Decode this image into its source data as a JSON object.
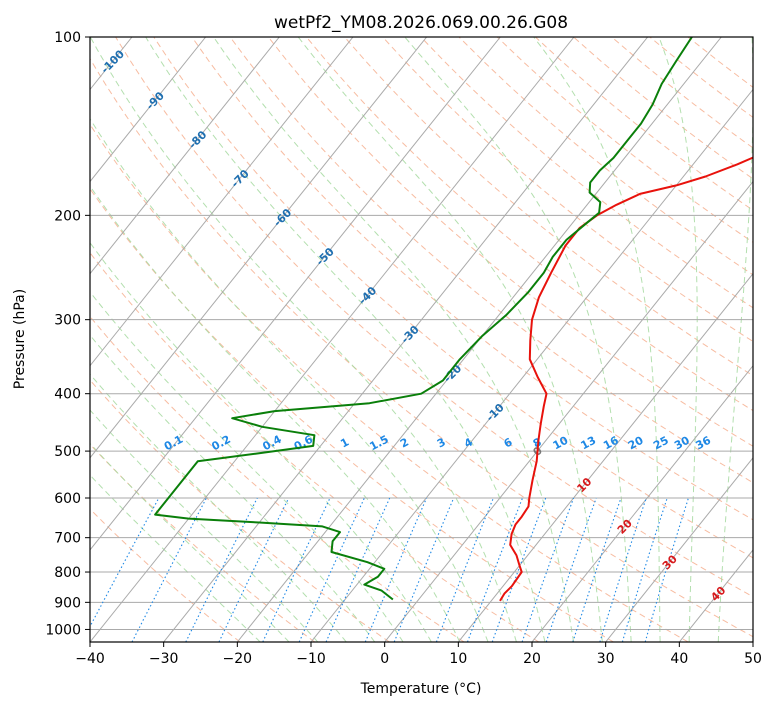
{
  "chart_data": {
    "type": "line",
    "title": "wetPf2_YM08.2026.069.00.26.G08",
    "xlabel": "Temperature (°C)",
    "ylabel": "Pressure (hPa)",
    "xlim": [
      -40,
      50
    ],
    "ylim": [
      1050,
      100
    ],
    "y_scale": "log",
    "grid": true,
    "x_ticks": [
      -40,
      -30,
      -20,
      -10,
      0,
      10,
      20,
      30,
      40,
      50
    ],
    "y_ticks": [
      100,
      200,
      300,
      400,
      500,
      600,
      700,
      800,
      900,
      1000
    ],
    "isotherm_labels": [
      -100,
      -90,
      -80,
      -70,
      -60,
      -50,
      -40,
      -30,
      -20,
      -10,
      0,
      10,
      20,
      30,
      40
    ],
    "mixing_ratio_labels": [
      "0.1",
      "0.2",
      "0.4",
      "0.6",
      "1",
      "1.5",
      "2",
      "3",
      "4",
      "6",
      "8",
      "10",
      "13",
      "16",
      "20",
      "25",
      "30",
      "36"
    ],
    "mixing_ratio_values": [
      0.1,
      0.2,
      0.4,
      0.6,
      1,
      1.5,
      2,
      3,
      4,
      6,
      8,
      10,
      13,
      16,
      20,
      25,
      30,
      36
    ],
    "colors": {
      "temperature": "#e8120c",
      "dewpoint": "#0a7f0a",
      "isotherm_cold": "#1f6fb0",
      "isotherm_warm": "#d7191c",
      "mixing_ratio": "#1e88e5",
      "dry_adiabat": "#f4a582",
      "moist_adiabat": "#a6d9a0",
      "skew_grid": "#aaaaaa"
    },
    "series": [
      {
        "role": "temperature",
        "points": [
          [
            11.2,
            895
          ],
          [
            11,
            870
          ],
          [
            11.2,
            845
          ],
          [
            11,
            800
          ],
          [
            10,
            780
          ],
          [
            8.5,
            750
          ],
          [
            6.5,
            720
          ],
          [
            5.5,
            690
          ],
          [
            5,
            665
          ],
          [
            5,
            645
          ],
          [
            4.8,
            620
          ],
          [
            4,
            600
          ],
          [
            2.5,
            560
          ],
          [
            1,
            520
          ],
          [
            -1,
            480
          ],
          [
            -2.5,
            450
          ],
          [
            -4,
            420
          ],
          [
            -5,
            400
          ],
          [
            -8,
            375
          ],
          [
            -11,
            350
          ],
          [
            -13,
            325
          ],
          [
            -15,
            300
          ],
          [
            -16.5,
            275
          ],
          [
            -17.5,
            250
          ],
          [
            -18.5,
            225
          ],
          [
            -18.5,
            210
          ],
          [
            -17.5,
            200
          ],
          [
            -16,
            192
          ],
          [
            -14,
            184
          ],
          [
            -10,
            178
          ],
          [
            -7,
            172
          ],
          [
            -4,
            164
          ],
          [
            -1,
            155
          ],
          [
            1,
            145
          ],
          [
            2,
            138
          ],
          [
            2.5,
            130
          ],
          [
            3,
            125
          ],
          [
            5,
            118
          ],
          [
            7,
            111
          ],
          [
            8,
            105
          ],
          [
            8.5,
            100
          ]
        ]
      },
      {
        "role": "dewpoint",
        "points": [
          [
            -3.5,
            890
          ],
          [
            -6,
            860
          ],
          [
            -9,
            840
          ],
          [
            -8,
            815
          ],
          [
            -8,
            790
          ],
          [
            -11,
            770
          ],
          [
            -17,
            740
          ],
          [
            -18,
            710
          ],
          [
            -18,
            685
          ],
          [
            -21,
            670
          ],
          [
            -30,
            660
          ],
          [
            -40,
            650
          ],
          [
            -45,
            640
          ],
          [
            -45,
            520
          ],
          [
            -38,
            505
          ],
          [
            -31,
            490
          ],
          [
            -32,
            470
          ],
          [
            -40,
            455
          ],
          [
            -45,
            440
          ],
          [
            -40,
            428
          ],
          [
            -28,
            415
          ],
          [
            -22,
            400
          ],
          [
            -20.5,
            380
          ],
          [
            -20.5,
            350
          ],
          [
            -20,
            320
          ],
          [
            -19,
            295
          ],
          [
            -18.5,
            270
          ],
          [
            -18.5,
            250
          ],
          [
            -19,
            235
          ],
          [
            -19,
            220
          ],
          [
            -18,
            205
          ],
          [
            -17.5,
            198
          ],
          [
            -18.5,
            190
          ],
          [
            -21,
            183
          ],
          [
            -22,
            176
          ],
          [
            -22,
            168
          ],
          [
            -21.5,
            160
          ],
          [
            -21.5,
            150
          ],
          [
            -21.5,
            140
          ],
          [
            -22,
            130
          ],
          [
            -23,
            120
          ],
          [
            -23.5,
            110
          ],
          [
            -24,
            100
          ]
        ]
      }
    ]
  }
}
